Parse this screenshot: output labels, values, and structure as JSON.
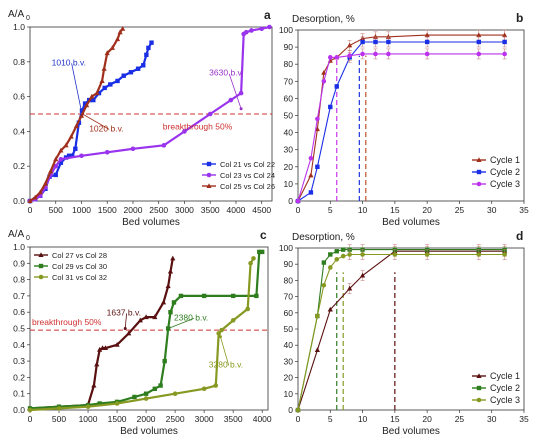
{
  "chart_data": [
    {
      "panel": "a",
      "type": "line",
      "ylabel_main": "A/A",
      "ylabel_sub": "0",
      "xlabel": "Bed volumes",
      "xlim": [
        0,
        4700
      ],
      "ylim": [
        0,
        1.0
      ],
      "x_ticks": [
        0,
        500,
        1000,
        1500,
        2000,
        2500,
        3000,
        3500,
        4000,
        4500
      ],
      "y_ticks": [
        0.0,
        0.2,
        0.4,
        0.6,
        0.8,
        1.0
      ],
      "breakthrough_y": 0.5,
      "annotations": [
        {
          "text": "1010 b.v.",
          "x": 420,
          "y": 0.78,
          "color": "#2233cc",
          "ax": 1010,
          "ay": 0.5
        },
        {
          "text": "1020 b.v.",
          "x": 1150,
          "y": 0.4,
          "color": "#a0301c",
          "ax": 1020,
          "ay": 0.5
        },
        {
          "text": "3630 b.v.",
          "x": 3480,
          "y": 0.72,
          "color": "#9933cc",
          "ax": 4100,
          "ay": 0.53
        },
        {
          "text": "breakthrough 50%",
          "x": 3900,
          "y": 0.48,
          "color": "#d03030"
        }
      ],
      "series": [
        {
          "name": "Col 21 vs Col 22",
          "color": "#1a2ee6",
          "marker": "square",
          "x": [
            0,
            100,
            200,
            300,
            380,
            500,
            600,
            700,
            760,
            820,
            880,
            950,
            1010,
            1070,
            1150,
            1230,
            1340,
            1450,
            1560,
            1700,
            1820,
            1960,
            2100,
            2200,
            2260,
            2300,
            2360
          ],
          "y": [
            0,
            0.01,
            0.03,
            0.07,
            0.14,
            0.15,
            0.22,
            0.25,
            0.26,
            0.26,
            0.3,
            0.45,
            0.52,
            0.56,
            0.58,
            0.58,
            0.62,
            0.65,
            0.67,
            0.69,
            0.72,
            0.74,
            0.76,
            0.78,
            0.84,
            0.88,
            0.91
          ]
        },
        {
          "name": "Col 23 vs Col 24",
          "color": "#9933ee",
          "marker": "circle",
          "x": [
            0,
            100,
            200,
            300,
            400,
            500,
            600,
            1000,
            1500,
            2000,
            2600,
            3000,
            3500,
            3900,
            4100,
            4150,
            4200,
            4300,
            4500,
            4650
          ],
          "y": [
            0,
            0.01,
            0.03,
            0.08,
            0.15,
            0.2,
            0.24,
            0.26,
            0.28,
            0.3,
            0.32,
            0.4,
            0.5,
            0.58,
            0.62,
            0.96,
            0.97,
            0.98,
            0.99,
            1.0
          ]
        },
        {
          "name": "Col 25 vs Col 26",
          "color": "#a0301c",
          "marker": "triangle",
          "x": [
            0,
            100,
            200,
            300,
            400,
            500,
            600,
            700,
            800,
            900,
            1000,
            1100,
            1200,
            1300,
            1400,
            1440,
            1500,
            1600,
            1700,
            1750,
            1800
          ],
          "y": [
            0,
            0.02,
            0.05,
            0.1,
            0.17,
            0.24,
            0.29,
            0.32,
            0.37,
            0.43,
            0.49,
            0.55,
            0.6,
            0.62,
            0.69,
            0.76,
            0.85,
            0.88,
            0.93,
            0.97,
            0.99
          ]
        }
      ]
    },
    {
      "panel": "b",
      "type": "line",
      "ylabel": "Desorption, %",
      "xlabel": "Bed volumes",
      "xlim": [
        0,
        35
      ],
      "ylim": [
        0,
        100
      ],
      "x_ticks": [
        0,
        5,
        10,
        15,
        20,
        25,
        30,
        35
      ],
      "y_ticks": [
        0,
        10,
        20,
        30,
        40,
        50,
        60,
        70,
        80,
        90,
        100
      ],
      "vlines": [
        {
          "x": 6,
          "color": "#cc33ee"
        },
        {
          "x": 9.5,
          "color": "#2233dd"
        },
        {
          "x": 10.5,
          "color": "#c0502a"
        }
      ],
      "series": [
        {
          "name": "Cycle 1",
          "color": "#a0301c",
          "marker": "triangle",
          "x": [
            0,
            2,
            3,
            4,
            5,
            6,
            8,
            10,
            12,
            14,
            20,
            28,
            32
          ],
          "y": [
            0,
            15,
            42,
            75,
            82,
            84,
            91,
            95,
            96,
            96,
            97,
            97,
            97
          ]
        },
        {
          "name": "Cycle 2",
          "color": "#1a2ee6",
          "marker": "square",
          "x": [
            0,
            2,
            3,
            5,
            6,
            8,
            10,
            12,
            14,
            20,
            28,
            32
          ],
          "y": [
            0,
            5,
            20,
            55,
            67,
            84,
            93,
            93,
            93,
            93,
            93,
            93
          ]
        },
        {
          "name": "Cycle 3",
          "color": "#bb33ee",
          "marker": "circle",
          "x": [
            0,
            2,
            3,
            4,
            5,
            6,
            8,
            10,
            12,
            14,
            20,
            28,
            32
          ],
          "y": [
            0,
            25,
            48,
            70,
            84,
            84,
            85,
            86,
            86,
            86,
            86,
            86,
            86
          ]
        }
      ]
    },
    {
      "panel": "c",
      "type": "line",
      "ylabel_main": "A/A",
      "ylabel_sub": "0",
      "xlabel": "Bed volumes",
      "xlim": [
        0,
        4100
      ],
      "ylim": [
        0,
        1.0
      ],
      "x_ticks": [
        0,
        500,
        1000,
        1500,
        2000,
        2500,
        3000,
        3500,
        4000
      ],
      "y_ticks": [
        0.0,
        0.1,
        0.2,
        0.3,
        0.4,
        0.5,
        0.6,
        0.7,
        0.8,
        0.9,
        1.0
      ],
      "breakthrough_y": 0.49,
      "annotations": [
        {
          "text": "1637 b.v.",
          "x": 1320,
          "y": 0.58,
          "color": "#5a1010",
          "ax": 1640,
          "ay": 0.5
        },
        {
          "text": "2380 b.v.",
          "x": 2480,
          "y": 0.55,
          "color": "#2e7d1e",
          "ax": 2380,
          "ay": 0.5
        },
        {
          "text": "3280 b.v.",
          "x": 3080,
          "y": 0.26,
          "color": "#889922",
          "ax": 3280,
          "ay": 0.45
        },
        {
          "text": "breakthrough 50%",
          "x": 0,
          "y": 0.51,
          "color": "#d03030"
        }
      ],
      "series": [
        {
          "name": "Col 27 vs Col 28",
          "color": "#5a1010",
          "marker": "triangle",
          "x": [
            0,
            500,
            1000,
            1100,
            1150,
            1200,
            1250,
            1300,
            1500,
            1700,
            1900,
            2000,
            2150,
            2300,
            2380,
            2420,
            2460
          ],
          "y": [
            0.01,
            0.02,
            0.03,
            0.15,
            0.28,
            0.37,
            0.38,
            0.38,
            0.4,
            0.47,
            0.55,
            0.57,
            0.57,
            0.66,
            0.76,
            0.85,
            0.93
          ]
        },
        {
          "name": "Col 29 vs Col 30",
          "color": "#2e7d1e",
          "marker": "square",
          "x": [
            0,
            500,
            1000,
            1200,
            1500,
            1800,
            2000,
            2150,
            2250,
            2320,
            2380,
            2420,
            2480,
            2600,
            3000,
            3500,
            3900,
            3950,
            4000
          ],
          "y": [
            0.01,
            0.02,
            0.03,
            0.04,
            0.05,
            0.08,
            0.1,
            0.13,
            0.15,
            0.3,
            0.5,
            0.6,
            0.66,
            0.7,
            0.7,
            0.7,
            0.7,
            0.97,
            0.97
          ]
        },
        {
          "name": "Col 31 vs Col 32",
          "color": "#889922",
          "marker": "circle",
          "x": [
            0,
            500,
            1000,
            1500,
            2000,
            2500,
            3000,
            3200,
            3250,
            3300,
            3500,
            3750,
            3800,
            3850
          ],
          "y": [
            0.0,
            0.01,
            0.02,
            0.04,
            0.07,
            0.1,
            0.13,
            0.15,
            0.47,
            0.49,
            0.55,
            0.62,
            0.9,
            0.93
          ]
        }
      ]
    },
    {
      "panel": "d",
      "type": "line",
      "ylabel": "Desorption, %",
      "xlabel": "Bed volumes",
      "xlim": [
        0,
        35
      ],
      "ylim": [
        0,
        100
      ],
      "x_ticks": [
        0,
        5,
        10,
        15,
        20,
        25,
        30,
        35
      ],
      "y_ticks": [
        0,
        10,
        20,
        30,
        40,
        50,
        60,
        70,
        80,
        90,
        100
      ],
      "vlines": [
        {
          "x": 6,
          "color": "#2e7d1e"
        },
        {
          "x": 7,
          "color": "#889922"
        },
        {
          "x": 15,
          "color": "#5a1010"
        }
      ],
      "series": [
        {
          "name": "Cycle 1",
          "color": "#5a1010",
          "marker": "triangle",
          "x": [
            0,
            3,
            5,
            8,
            10,
            15,
            20,
            28,
            32
          ],
          "y": [
            0,
            37,
            62,
            75,
            83,
            98,
            98,
            98,
            98
          ]
        },
        {
          "name": "Cycle 2",
          "color": "#2e7d1e",
          "marker": "square",
          "x": [
            0,
            3,
            4,
            5,
            6,
            7,
            8,
            10,
            15,
            20,
            28,
            32
          ],
          "y": [
            0,
            58,
            91,
            96,
            98,
            99,
            99,
            99,
            99,
            99,
            99,
            99
          ]
        },
        {
          "name": "Cycle 3",
          "color": "#889922",
          "marker": "circle",
          "x": [
            0,
            3,
            4,
            5,
            6,
            7,
            8,
            10,
            15,
            20,
            28,
            32
          ],
          "y": [
            0,
            58,
            77,
            88,
            93,
            95,
            96,
            96,
            96,
            96,
            96,
            96
          ]
        }
      ]
    }
  ]
}
